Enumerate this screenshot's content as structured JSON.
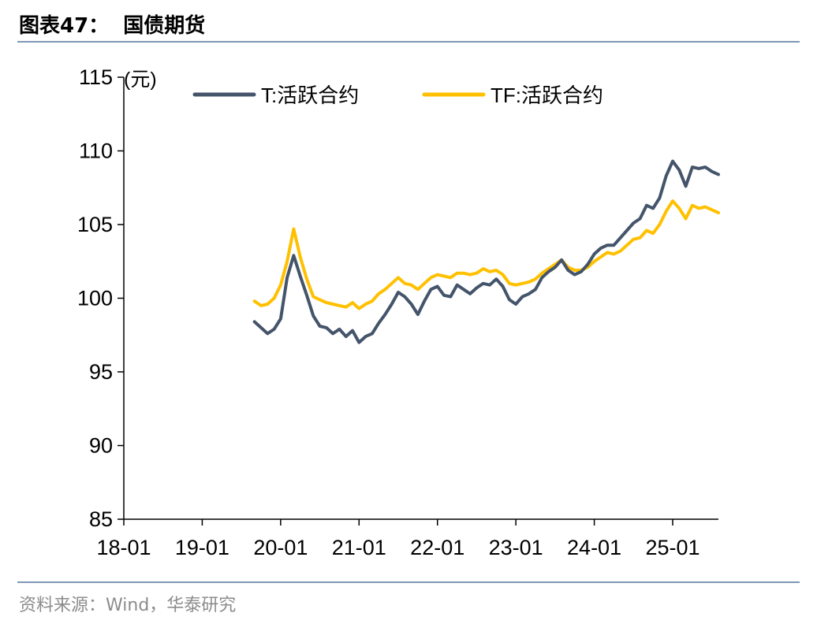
{
  "figure": {
    "title": "图表47：  国债期货",
    "source": "资料来源：Wind，华泰研究"
  },
  "chart_data": {
    "type": "line",
    "unit_label": "(元)",
    "ylim": [
      85,
      115
    ],
    "yticks": [
      85,
      90,
      95,
      100,
      105,
      110,
      115
    ],
    "xticks": [
      "18-01",
      "19-01",
      "20-01",
      "21-01",
      "22-01",
      "23-01",
      "24-01",
      "25-01"
    ],
    "xlim": [
      "2018-01",
      "2025-08"
    ],
    "legend_position": "top",
    "grid": false,
    "x": [
      "2019-09",
      "2019-10",
      "2019-11",
      "2019-12",
      "2020-01",
      "2020-02",
      "2020-03",
      "2020-04",
      "2020-05",
      "2020-06",
      "2020-07",
      "2020-08",
      "2020-09",
      "2020-10",
      "2020-11",
      "2020-12",
      "2021-01",
      "2021-02",
      "2021-03",
      "2021-04",
      "2021-05",
      "2021-06",
      "2021-07",
      "2021-08",
      "2021-09",
      "2021-10",
      "2021-11",
      "2021-12",
      "2022-01",
      "2022-02",
      "2022-03",
      "2022-04",
      "2022-05",
      "2022-06",
      "2022-07",
      "2022-08",
      "2022-09",
      "2022-10",
      "2022-11",
      "2022-12",
      "2023-01",
      "2023-02",
      "2023-03",
      "2023-04",
      "2023-05",
      "2023-06",
      "2023-07",
      "2023-08",
      "2023-09",
      "2023-10",
      "2023-11",
      "2023-12",
      "2024-01",
      "2024-02",
      "2024-03",
      "2024-04",
      "2024-05",
      "2024-06",
      "2024-07",
      "2024-08",
      "2024-09",
      "2024-10",
      "2024-11",
      "2024-12",
      "2025-01",
      "2025-02",
      "2025-03",
      "2025-04",
      "2025-05",
      "2025-06",
      "2025-07",
      "2025-08"
    ],
    "series": [
      {
        "name": "T:活跃合约",
        "color": "#44546a",
        "values": [
          98.4,
          98.0,
          97.6,
          97.9,
          98.6,
          101.4,
          102.9,
          101.5,
          100.2,
          98.8,
          98.1,
          98.0,
          97.6,
          97.9,
          97.4,
          97.8,
          97.0,
          97.4,
          97.6,
          98.3,
          98.9,
          99.6,
          100.4,
          100.1,
          99.6,
          98.9,
          99.8,
          100.6,
          100.8,
          100.2,
          100.1,
          100.9,
          100.6,
          100.3,
          100.7,
          101.0,
          100.9,
          101.3,
          100.8,
          99.9,
          99.6,
          100.1,
          100.3,
          100.6,
          101.4,
          101.8,
          102.1,
          102.6,
          101.9,
          101.6,
          101.8,
          102.3,
          103.0,
          103.4,
          103.6,
          103.6,
          104.1,
          104.6,
          105.1,
          105.4,
          106.3,
          106.1,
          106.8,
          108.3,
          109.3,
          108.7,
          107.6,
          108.9,
          108.8,
          108.9,
          108.6,
          108.4
        ]
      },
      {
        "name": "TF:活跃合约",
        "color": "#ffc000",
        "values": [
          99.8,
          99.5,
          99.6,
          100.0,
          100.9,
          102.5,
          104.7,
          102.8,
          101.3,
          100.1,
          99.9,
          99.7,
          99.6,
          99.5,
          99.4,
          99.7,
          99.3,
          99.6,
          99.8,
          100.3,
          100.6,
          101.0,
          101.4,
          101.0,
          100.9,
          100.6,
          101.0,
          101.4,
          101.6,
          101.5,
          101.4,
          101.7,
          101.7,
          101.6,
          101.7,
          102.0,
          101.8,
          101.9,
          101.6,
          101.0,
          100.9,
          101.0,
          101.1,
          101.3,
          101.7,
          102.0,
          102.3,
          102.6,
          102.1,
          101.9,
          101.9,
          102.1,
          102.5,
          102.8,
          103.1,
          103.0,
          103.2,
          103.6,
          104.0,
          104.1,
          104.6,
          104.4,
          105.0,
          105.9,
          106.6,
          106.1,
          105.4,
          106.3,
          106.1,
          106.2,
          106.0,
          105.8
        ]
      }
    ]
  }
}
